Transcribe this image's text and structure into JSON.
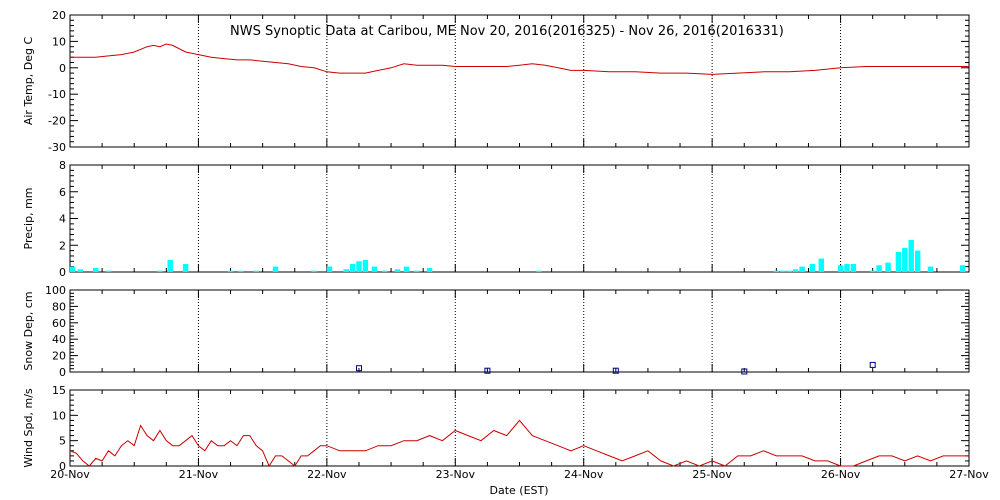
{
  "title": "NWS Synoptic Data at Caribou, ME    Nov 20, 2016(2016325) - Nov 26, 2016(2016331)",
  "xlabel": "Date (EST)",
  "x_ticks": [
    "20-Nov",
    "21-Nov",
    "22-Nov",
    "23-Nov",
    "24-Nov",
    "25-Nov",
    "26-Nov",
    "27-Nov"
  ],
  "colors": {
    "temp": "#cc0000",
    "precip": "#00ffff",
    "snow": "#000080",
    "wind": "#cc0000",
    "axis": "#000000"
  },
  "chart_data": [
    {
      "type": "line",
      "ylabel": "Air Temp, Deg C",
      "ylim": [
        -30,
        20
      ],
      "yticks": [
        -30,
        -20,
        -10,
        0,
        10,
        20
      ],
      "x_range_days": [
        0,
        7
      ],
      "x": [
        0,
        0.1,
        0.2,
        0.3,
        0.4,
        0.5,
        0.6,
        0.65,
        0.7,
        0.75,
        0.8,
        0.9,
        1.0,
        1.1,
        1.2,
        1.3,
        1.4,
        1.5,
        1.6,
        1.7,
        1.8,
        1.9,
        2.0,
        2.1,
        2.2,
        2.3,
        2.4,
        2.5,
        2.6,
        2.7,
        2.8,
        2.9,
        3.0,
        3.1,
        3.2,
        3.3,
        3.4,
        3.5,
        3.6,
        3.7,
        3.8,
        3.9,
        4.0,
        4.2,
        4.4,
        4.6,
        4.8,
        5.0,
        5.2,
        5.4,
        5.6,
        5.8,
        6.0,
        6.2,
        6.4,
        6.6,
        6.8,
        7.0
      ],
      "values": [
        4,
        4,
        4,
        4.5,
        5,
        6,
        8,
        8.5,
        8,
        9,
        8.5,
        6,
        5,
        4,
        3.5,
        3,
        3,
        2.5,
        2,
        1.5,
        0.5,
        0,
        -1.5,
        -2,
        -2,
        -2,
        -1,
        0,
        1.5,
        1,
        1,
        1,
        0.5,
        0.5,
        0.5,
        0.5,
        0.5,
        1,
        1.5,
        1,
        0,
        -1,
        -1,
        -1.5,
        -1.5,
        -2,
        -2,
        -2.5,
        -2,
        -1.5,
        -1.5,
        -1,
        0,
        0.5,
        0.5,
        0.5,
        0.5,
        0.5
      ]
    },
    {
      "type": "bar",
      "ylabel": "Precip, mm",
      "ylim": [
        0,
        8
      ],
      "yticks": [
        0,
        2,
        4,
        6,
        8
      ],
      "x_range_days": [
        0,
        7
      ],
      "x": [
        0.02,
        0.08,
        0.2,
        0.3,
        0.7,
        0.78,
        0.9,
        1.25,
        1.33,
        1.45,
        1.6,
        1.9,
        2.02,
        2.15,
        2.2,
        2.25,
        2.3,
        2.37,
        2.45,
        2.55,
        2.62,
        2.7,
        2.8,
        3.65,
        5.5,
        5.55,
        5.6,
        5.65,
        5.7,
        5.78,
        5.85,
        6.0,
        6.05,
        6.1,
        6.25,
        6.3,
        6.37,
        6.45,
        6.5,
        6.55,
        6.6,
        6.7,
        6.95
      ],
      "values": [
        0.4,
        0.2,
        0.3,
        0.1,
        0.1,
        0.9,
        0.6,
        0.1,
        0.1,
        0.1,
        0.4,
        0.1,
        0.4,
        0.2,
        0.6,
        0.8,
        0.9,
        0.4,
        0.1,
        0.2,
        0.4,
        0.1,
        0.3,
        0.1,
        0.1,
        0.1,
        0.1,
        0.2,
        0.4,
        0.6,
        1.0,
        0.5,
        0.6,
        0.6,
        0.1,
        0.5,
        0.7,
        1.5,
        1.8,
        2.4,
        1.6,
        0.4,
        0.5
      ]
    },
    {
      "type": "scatter",
      "ylabel": "Snow Dep, cm",
      "ylim": [
        0,
        100
      ],
      "yticks": [
        0,
        20,
        40,
        60,
        80,
        100
      ],
      "x_range_days": [
        0,
        7
      ],
      "x": [
        2.25,
        3.25,
        4.25,
        5.25,
        6.25
      ],
      "values": [
        4,
        1,
        1,
        0,
        8
      ]
    },
    {
      "type": "line",
      "ylabel": "Wind Spd, m/s",
      "ylim": [
        0,
        15
      ],
      "yticks": [
        0,
        5,
        10,
        15
      ],
      "x_range_days": [
        0,
        7
      ],
      "x": [
        0,
        0.05,
        0.1,
        0.15,
        0.2,
        0.25,
        0.3,
        0.35,
        0.4,
        0.45,
        0.5,
        0.55,
        0.6,
        0.65,
        0.7,
        0.75,
        0.8,
        0.85,
        0.9,
        0.95,
        1.0,
        1.05,
        1.1,
        1.15,
        1.2,
        1.25,
        1.3,
        1.35,
        1.4,
        1.45,
        1.5,
        1.55,
        1.6,
        1.65,
        1.7,
        1.75,
        1.8,
        1.85,
        1.9,
        1.95,
        2.0,
        2.1,
        2.2,
        2.3,
        2.4,
        2.5,
        2.6,
        2.7,
        2.8,
        2.9,
        3.0,
        3.1,
        3.2,
        3.3,
        3.4,
        3.5,
        3.6,
        3.7,
        3.8,
        3.9,
        4.0,
        4.1,
        4.2,
        4.3,
        4.4,
        4.5,
        4.6,
        4.7,
        4.8,
        4.9,
        5.0,
        5.1,
        5.2,
        5.3,
        5.4,
        5.5,
        5.6,
        5.7,
        5.8,
        5.9,
        6.0,
        6.1,
        6.2,
        6.3,
        6.4,
        6.5,
        6.6,
        6.7,
        6.8,
        6.9,
        7.0
      ],
      "values": [
        3,
        2.5,
        1,
        0,
        1.5,
        1,
        3,
        2,
        4,
        5,
        4,
        8,
        6,
        5,
        7,
        5,
        4,
        4,
        5,
        6,
        4,
        3,
        5,
        4,
        4,
        5,
        4,
        6,
        6,
        4,
        3,
        0,
        2,
        2,
        1,
        0,
        2,
        2,
        3,
        4,
        4,
        3,
        3,
        3,
        4,
        4,
        5,
        5,
        6,
        5,
        7,
        6,
        5,
        7,
        6,
        9,
        6,
        5,
        4,
        3,
        4,
        3,
        2,
        1,
        2,
        3,
        1,
        0,
        1,
        0,
        1,
        0,
        2,
        2,
        3,
        2,
        2,
        2,
        1,
        1,
        0,
        0,
        1,
        2,
        2,
        1,
        2,
        1,
        2,
        2,
        2
      ]
    }
  ]
}
